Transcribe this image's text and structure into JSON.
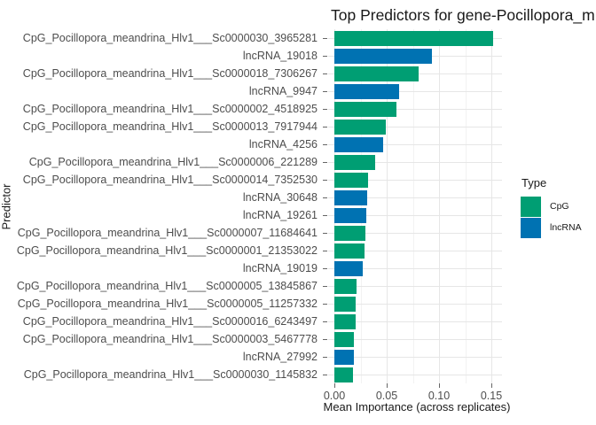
{
  "chart_data": {
    "type": "bar",
    "orientation": "horizontal",
    "title": "Top Predictors for gene-Pocillopora_m",
    "xlabel": "Mean Importance (across replicates)",
    "ylabel": "Predictor",
    "xlim": [
      0,
      0.16
    ],
    "x_ticks": [
      0,
      0.05,
      0.1,
      0.15
    ],
    "x_tick_labels": [
      "0.00",
      "0.05",
      "0.10",
      "0.15"
    ],
    "x_minor_ticks": [
      0.025,
      0.075,
      0.125
    ],
    "grid": true,
    "colors": {
      "CpG": "#009E73",
      "lncRNA": "#0072B2"
    },
    "legend": {
      "title": "Type",
      "position": "right",
      "entries": [
        {
          "label": "CpG",
          "color": "#009E73"
        },
        {
          "label": "lncRNA",
          "color": "#0072B2"
        }
      ]
    },
    "bars": [
      {
        "label": "CpG_Pocillopora_meandrina_Hlv1___Sc0000030_3965281",
        "type": "CpG",
        "value": 0.1515
      },
      {
        "label": "lncRNA_19018",
        "type": "lncRNA",
        "value": 0.093
      },
      {
        "label": "CpG_Pocillopora_meandrina_Hlv1___Sc0000018_7306267",
        "type": "CpG",
        "value": 0.0802
      },
      {
        "label": "lncRNA_9947",
        "type": "lncRNA",
        "value": 0.0619
      },
      {
        "label": "CpG_Pocillopora_meandrina_Hlv1___Sc0000002_4518925",
        "type": "CpG",
        "value": 0.0593
      },
      {
        "label": "CpG_Pocillopora_meandrina_Hlv1___Sc0000013_7917944",
        "type": "CpG",
        "value": 0.0494
      },
      {
        "label": "lncRNA_4256",
        "type": "lncRNA",
        "value": 0.0466
      },
      {
        "label": "CpG_Pocillopora_meandrina_Hlv1___Sc0000006_221289",
        "type": "CpG",
        "value": 0.0392
      },
      {
        "label": "CpG_Pocillopora_meandrina_Hlv1___Sc0000014_7352530",
        "type": "CpG",
        "value": 0.0319
      },
      {
        "label": "lncRNA_30648",
        "type": "lncRNA",
        "value": 0.0316
      },
      {
        "label": "lncRNA_19261",
        "type": "lncRNA",
        "value": 0.0303
      },
      {
        "label": "CpG_Pocillopora_meandrina_Hlv1___Sc0000007_11684641",
        "type": "CpG",
        "value": 0.0294
      },
      {
        "label": "CpG_Pocillopora_meandrina_Hlv1___Sc0000001_21353022",
        "type": "CpG",
        "value": 0.0286
      },
      {
        "label": "lncRNA_19019",
        "type": "lncRNA",
        "value": 0.0274
      },
      {
        "label": "CpG_Pocillopora_meandrina_Hlv1___Sc0000005_13845867",
        "type": "CpG",
        "value": 0.0214
      },
      {
        "label": "CpG_Pocillopora_meandrina_Hlv1___Sc0000005_11257332",
        "type": "CpG",
        "value": 0.0202
      },
      {
        "label": "CpG_Pocillopora_meandrina_Hlv1___Sc0000016_6243497",
        "type": "CpG",
        "value": 0.02
      },
      {
        "label": "CpG_Pocillopora_meandrina_Hlv1___Sc0000003_5467778",
        "type": "CpG",
        "value": 0.0188
      },
      {
        "label": "lncRNA_27992",
        "type": "lncRNA",
        "value": 0.019
      },
      {
        "label": "CpG_Pocillopora_meandrina_Hlv1___Sc0000030_1145832",
        "type": "CpG",
        "value": 0.0175
      }
    ]
  }
}
